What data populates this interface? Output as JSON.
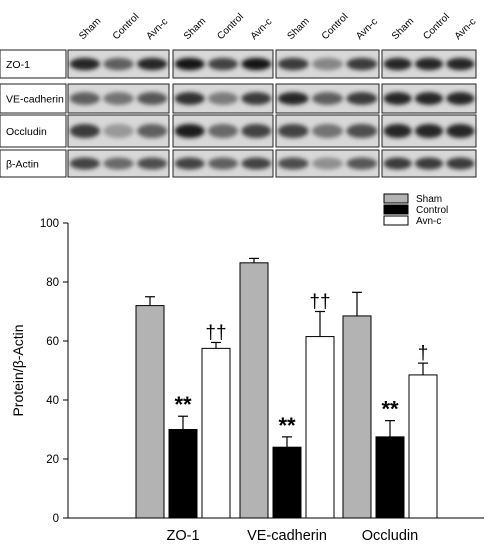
{
  "blot": {
    "lane_labels": [
      "Sham",
      "Control",
      "Avn-c"
    ],
    "rows": [
      "ZO-1",
      "VE-cadherin",
      "Occludin",
      "β-Actin"
    ],
    "band_intensity": [
      [
        [
          0.85,
          0.55,
          0.85
        ],
        [
          0.55,
          0.45,
          0.6
        ],
        [
          0.75,
          0.25,
          0.55
        ],
        [
          0.7,
          0.5,
          0.65
        ]
      ],
      [
        [
          0.95,
          0.7,
          0.95
        ],
        [
          0.8,
          0.4,
          0.75
        ],
        [
          0.9,
          0.5,
          0.7
        ],
        [
          0.7,
          0.55,
          0.7
        ]
      ],
      [
        [
          0.75,
          0.35,
          0.75
        ],
        [
          0.85,
          0.55,
          0.75
        ],
        [
          0.7,
          0.45,
          0.65
        ],
        [
          0.65,
          0.3,
          0.6
        ]
      ],
      [
        [
          0.85,
          0.85,
          0.85
        ],
        [
          0.85,
          0.85,
          0.85
        ],
        [
          0.85,
          0.85,
          0.85
        ],
        [
          0.75,
          0.75,
          0.75
        ]
      ]
    ]
  },
  "chart_data": {
    "type": "bar",
    "categories": [
      "ZO-1",
      "VE-cadherin",
      "Occludin"
    ],
    "series": [
      {
        "name": "Sham",
        "values": [
          72,
          86.5,
          68.5
        ],
        "errors": [
          3,
          1.5,
          8
        ],
        "color": "#b3b3b3"
      },
      {
        "name": "Control",
        "values": [
          30,
          24,
          27.5
        ],
        "errors": [
          4.5,
          3.5,
          5.5
        ],
        "color": "#000000"
      },
      {
        "name": "Avn-c",
        "values": [
          57.5,
          61.5,
          48.5
        ],
        "errors": [
          2,
          8.5,
          4
        ],
        "color": "#ffffff"
      }
    ],
    "significance": [
      [
        "",
        "**",
        "††"
      ],
      [
        "",
        "**",
        "††"
      ],
      [
        "",
        "**",
        "†"
      ]
    ],
    "xlabel": "",
    "ylabel": "Protein/β-Actin",
    "ylim": [
      0,
      100
    ],
    "yticks": [
      0,
      20,
      40,
      60,
      80,
      100
    ],
    "grid": false,
    "legend_position": "top-right"
  }
}
